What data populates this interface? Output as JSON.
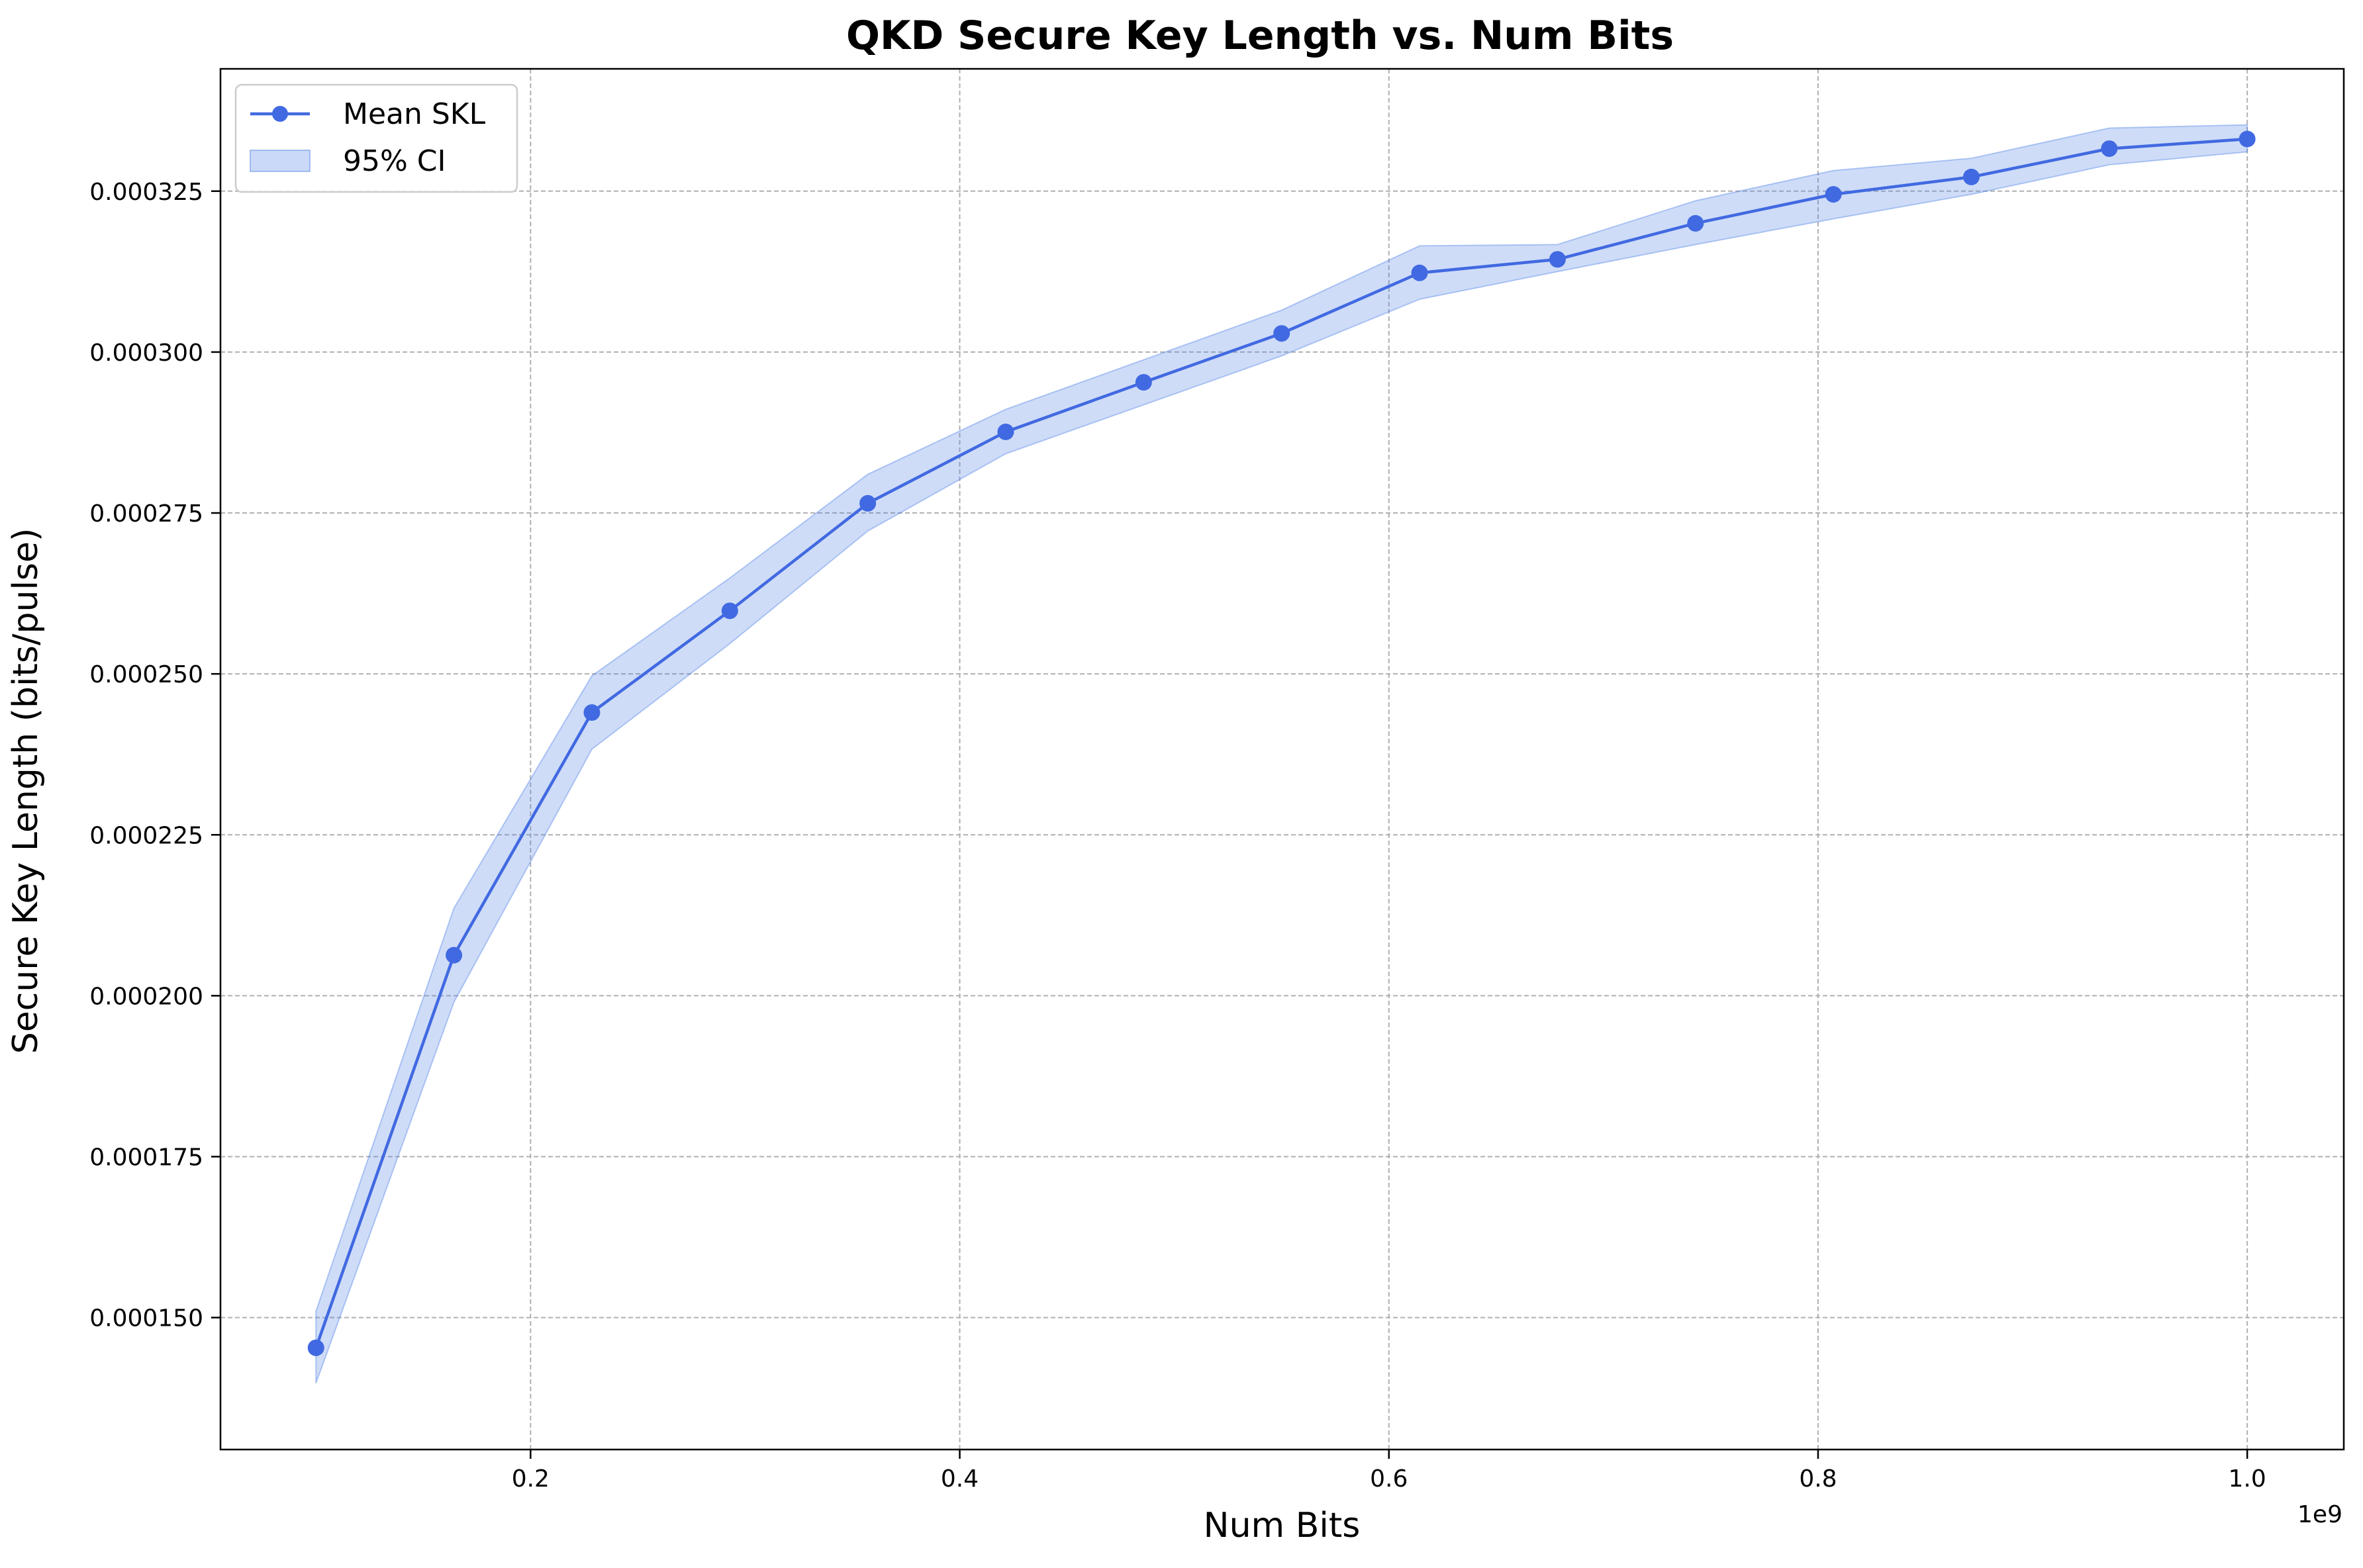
{
  "chart_data": {
    "type": "line",
    "title": "QKD Secure Key Length vs. Num Bits",
    "xlabel": "Num Bits",
    "ylabel": "Secure Key Length (bits/pulse)",
    "x_offset_label": "1e9",
    "xlim": [
      0.0555,
      1.045
    ],
    "ylim": [
      0.0001295,
      0.000344
    ],
    "grid": true,
    "legend_position": "upper left",
    "x_ticks": [
      0.2,
      0.4,
      0.6,
      0.8,
      1.0
    ],
    "x_tick_labels": [
      "0.2",
      "0.4",
      "0.6",
      "0.8",
      "1.0"
    ],
    "y_ticks": [
      0.00015,
      0.000175,
      0.0002,
      0.000225,
      0.00025,
      0.000275,
      0.0003,
      0.000325
    ],
    "y_tick_labels": [
      "0.000150",
      "0.000175",
      "0.000200",
      "0.000225",
      "0.000250",
      "0.000275",
      "0.000300",
      "0.000325"
    ],
    "x_unit_scale": 1000000000,
    "colors": {
      "line": "#4169E1",
      "band": "#4f81e6"
    },
    "series": [
      {
        "name": "Mean SKL",
        "x": [
          100000000,
          164285714,
          228571429,
          292857143,
          357142857,
          421428571,
          485714286,
          550000000,
          614285714,
          678571429,
          742857143,
          807142857,
          871428571,
          935714286,
          1000000000
        ],
        "y": [
          0.0001453,
          0.0002063,
          0.000244,
          0.0002598,
          0.0002765,
          0.0002876,
          0.0002953,
          0.0003029,
          0.0003123,
          0.0003144,
          0.00032,
          0.0003245,
          0.0003272,
          0.0003316,
          0.0003331
        ]
      }
    ],
    "bands": [
      {
        "name": "95% CI",
        "x": [
          100000000,
          164285714,
          228571429,
          292857143,
          357142857,
          421428571,
          485714286,
          550000000,
          614285714,
          678571429,
          742857143,
          807142857,
          871428571,
          935714286,
          1000000000
        ],
        "lower": [
          0.0001398,
          0.000199,
          0.0002383,
          0.0002547,
          0.0002722,
          0.0002842,
          0.0002918,
          0.0002994,
          0.0003082,
          0.0003125,
          0.0003167,
          0.0003207,
          0.0003245,
          0.0003291,
          0.0003311
        ],
        "upper": [
          0.000151,
          0.0002136,
          0.0002497,
          0.0002649,
          0.000281,
          0.0002911,
          0.0002988,
          0.0003065,
          0.0003165,
          0.0003167,
          0.0003235,
          0.0003282,
          0.0003301,
          0.0003348,
          0.0003353
        ]
      }
    ]
  }
}
